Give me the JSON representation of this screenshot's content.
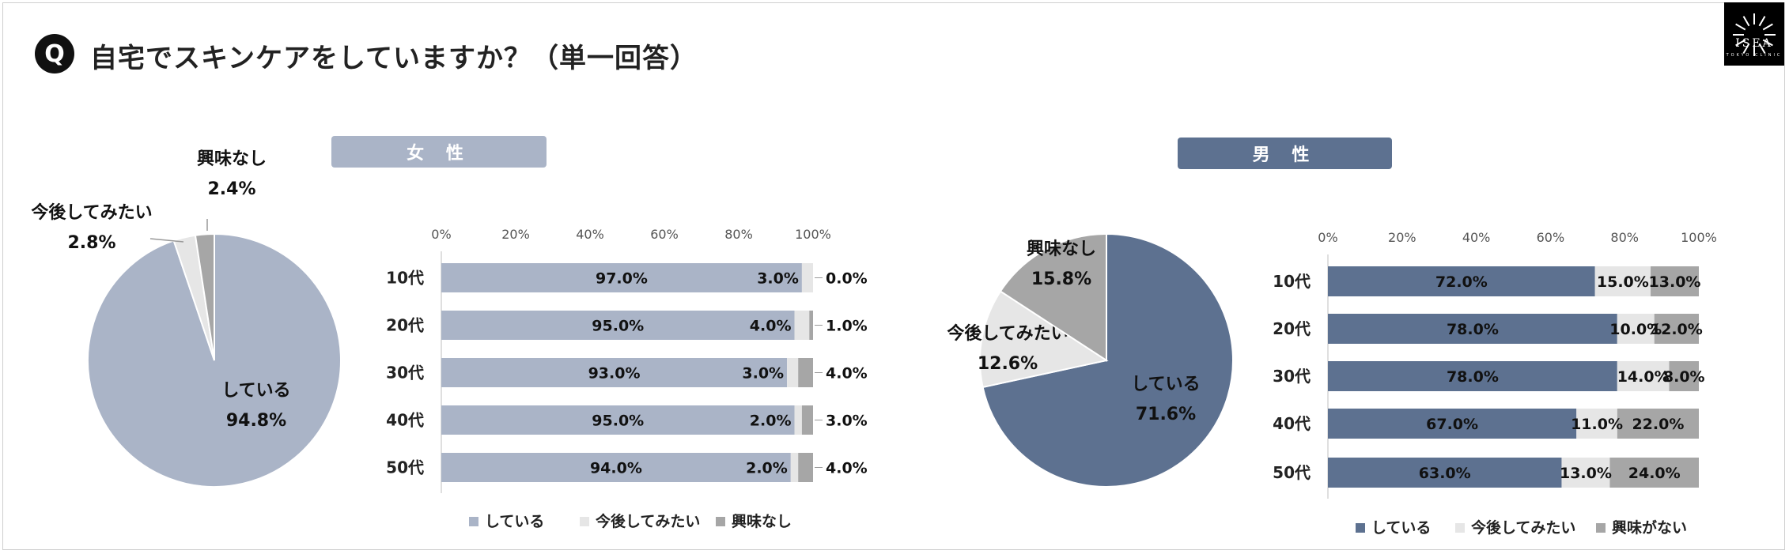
{
  "header": {
    "title": "自宅でスキンケアをしていますか？（単一回答）",
    "badge": "Q"
  },
  "logo": {
    "name": "ISEA",
    "sub": "TOKYO CLINIC"
  },
  "colors": {
    "female_main": "#AAB4C7",
    "male_main": "#5D7190",
    "want": "#E6E6E6",
    "none": "#A6A6A6"
  },
  "panels": {
    "female_label": "女 性",
    "male_label": "男 性"
  },
  "chart_data": [
    {
      "id": "female-pie",
      "type": "pie",
      "slices": [
        {
          "label": "している",
          "value": 94.8,
          "display": "94.8%"
        },
        {
          "label": "今後してみたい",
          "value": 2.8,
          "display": "2.8%"
        },
        {
          "label": "興味なし",
          "value": 2.4,
          "display": "2.4%"
        }
      ]
    },
    {
      "id": "female-bar",
      "type": "bar",
      "orientation": "horizontal",
      "stacked": true,
      "categories": [
        "10代",
        "20代",
        "30代",
        "40代",
        "50代"
      ],
      "xlim": [
        0,
        100
      ],
      "ticks": [
        "0%",
        "20%",
        "40%",
        "60%",
        "80%",
        "100%"
      ],
      "series": [
        {
          "name": "している",
          "values": [
            97.0,
            95.0,
            93.0,
            95.0,
            94.0
          ],
          "labels": [
            "97.0%",
            "95.0%",
            "93.0%",
            "95.0%",
            "94.0%"
          ]
        },
        {
          "name": "今後してみたい",
          "values": [
            3.0,
            4.0,
            3.0,
            2.0,
            2.0
          ],
          "labels": [
            "3.0%",
            "4.0%",
            "3.0%",
            "2.0%",
            "2.0%"
          ]
        },
        {
          "name": "興味なし",
          "values": [
            0.0,
            1.0,
            4.0,
            3.0,
            4.0
          ],
          "labels": [
            "0.0%",
            "1.0%",
            "4.0%",
            "3.0%",
            "4.0%"
          ]
        }
      ],
      "legend": [
        "している",
        "今後してみたい",
        "興味なし"
      ],
      "legend_position": "bottom"
    },
    {
      "id": "male-pie",
      "type": "pie",
      "slices": [
        {
          "label": "している",
          "value": 71.6,
          "display": "71.6%"
        },
        {
          "label": "今後してみたい",
          "value": 12.6,
          "display": "12.6%"
        },
        {
          "label": "興味なし",
          "value": 15.8,
          "display": "15.8%"
        }
      ]
    },
    {
      "id": "male-bar",
      "type": "bar",
      "orientation": "horizontal",
      "stacked": true,
      "categories": [
        "10代",
        "20代",
        "30代",
        "40代",
        "50代"
      ],
      "xlim": [
        0,
        100
      ],
      "ticks": [
        "0%",
        "20%",
        "40%",
        "60%",
        "80%",
        "100%"
      ],
      "series": [
        {
          "name": "している",
          "values": [
            72.0,
            78.0,
            78.0,
            67.0,
            63.0
          ],
          "labels": [
            "72.0%",
            "78.0%",
            "78.0%",
            "67.0%",
            "63.0%"
          ]
        },
        {
          "name": "今後してみたい",
          "values": [
            15.0,
            10.0,
            14.0,
            11.0,
            13.0
          ],
          "labels": [
            "15.0%",
            "10.0%",
            "14.0%",
            "11.0%",
            "13.0%"
          ]
        },
        {
          "name": "興味がない",
          "values": [
            13.0,
            12.0,
            8.0,
            22.0,
            24.0
          ],
          "labels": [
            "13.0%",
            "12.0%",
            "8.0%",
            "22.0%",
            "24.0%"
          ]
        }
      ],
      "legend": [
        "している",
        "今後してみたい",
        "興味がない"
      ],
      "legend_position": "bottom"
    }
  ]
}
